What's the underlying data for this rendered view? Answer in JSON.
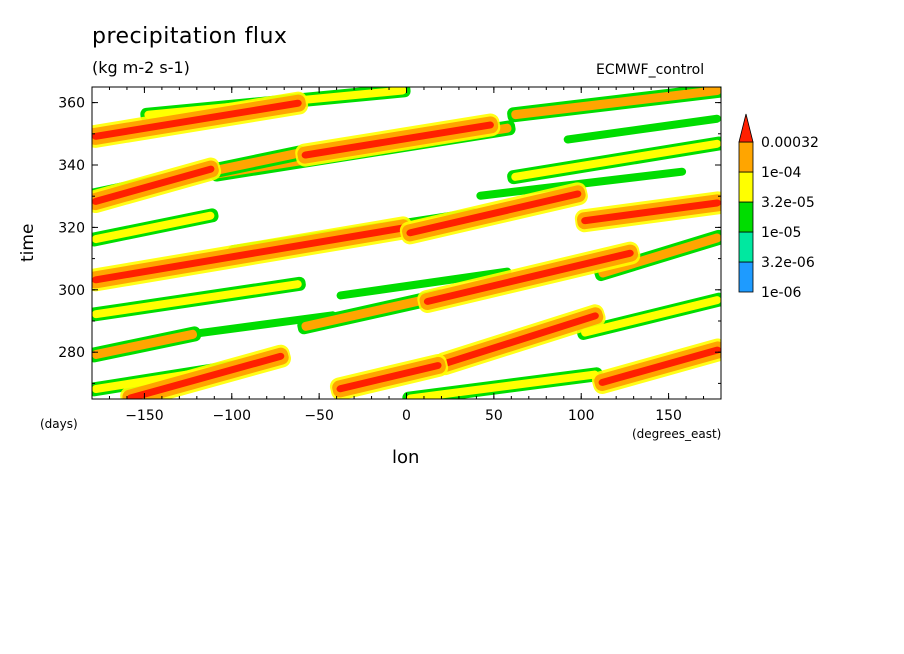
{
  "chart_data": {
    "type": "heatmap",
    "title": "precipitation flux",
    "units": "(kg m-2 s-1)",
    "model": "ECMWF_control",
    "xlabel": "lon",
    "ylabel": "time",
    "x_unit": "(degrees_east)",
    "y_unit": "(days)",
    "xlim": [
      -180,
      180
    ],
    "ylim": [
      265,
      365
    ],
    "x_ticks": [
      -150,
      -100,
      -50,
      0,
      50,
      100,
      150
    ],
    "y_ticks": [
      280,
      300,
      320,
      340,
      360
    ],
    "colorbar": {
      "levels": [
        "1e-06",
        "3.2e-06",
        "1e-05",
        "3.2e-05",
        "1e-04",
        "0.00032"
      ],
      "colors": [
        "#1e9bff",
        "#00e8a0",
        "#00dd00",
        "#ffff00",
        "#ffa500",
        "#ff2000"
      ]
    },
    "bands": [
      {
        "lon0": -180,
        "t0": 328,
        "lon1": -110,
        "t1": 339,
        "level": 5
      },
      {
        "lon0": -110,
        "t0": 337,
        "lon1": 60,
        "t1": 352,
        "level": 4
      },
      {
        "lon0": -60,
        "t0": 343,
        "lon1": 50,
        "t1": 353,
        "level": 5
      },
      {
        "lon0": -180,
        "t0": 349,
        "lon1": -60,
        "t1": 360,
        "level": 5
      },
      {
        "lon0": 60,
        "t0": 356,
        "lon1": 180,
        "t1": 364,
        "level": 4
      },
      {
        "lon0": -180,
        "t0": 303,
        "lon1": 0,
        "t1": 320,
        "level": 5
      },
      {
        "lon0": 0,
        "t0": 318,
        "lon1": 100,
        "t1": 331,
        "level": 5
      },
      {
        "lon0": 100,
        "t0": 322,
        "lon1": 180,
        "t1": 328,
        "level": 5
      },
      {
        "lon0": -180,
        "t0": 330,
        "lon1": -60,
        "t1": 344,
        "level": 4
      },
      {
        "lon0": 10,
        "t0": 296,
        "lon1": 130,
        "t1": 312,
        "level": 5
      },
      {
        "lon0": -60,
        "t0": 288,
        "lon1": 20,
        "t1": 298,
        "level": 4
      },
      {
        "lon0": 110,
        "t0": 305,
        "lon1": 180,
        "t1": 317,
        "level": 4
      },
      {
        "lon0": 20,
        "t0": 276,
        "lon1": 110,
        "t1": 292,
        "level": 5
      },
      {
        "lon0": -40,
        "t0": 268,
        "lon1": 20,
        "t1": 276,
        "level": 5
      },
      {
        "lon0": -180,
        "t0": 279,
        "lon1": -120,
        "t1": 286,
        "level": 4
      },
      {
        "lon0": -160,
        "t0": 265,
        "lon1": -70,
        "t1": 279,
        "level": 5
      },
      {
        "lon0": 110,
        "t0": 270,
        "lon1": 180,
        "t1": 281,
        "level": 5
      },
      {
        "lon0": -180,
        "t0": 292,
        "lon1": -60,
        "t1": 302,
        "level": 3
      },
      {
        "lon0": -100,
        "t0": 312,
        "lon1": 40,
        "t1": 324,
        "level": 3
      },
      {
        "lon0": -180,
        "t0": 316,
        "lon1": -110,
        "t1": 324,
        "level": 3
      },
      {
        "lon0": 60,
        "t0": 336,
        "lon1": 180,
        "t1": 347,
        "level": 3
      },
      {
        "lon0": -150,
        "t0": 356,
        "lon1": 0,
        "t1": 364,
        "level": 3
      },
      {
        "lon0": 100,
        "t0": 286,
        "lon1": 180,
        "t1": 297,
        "level": 3
      },
      {
        "lon0": -120,
        "t0": 286,
        "lon1": -40,
        "t1": 292,
        "level": 2
      },
      {
        "lon0": 40,
        "t0": 330,
        "lon1": 160,
        "t1": 338,
        "level": 2
      },
      {
        "lon0": -180,
        "t0": 268,
        "lon1": -90,
        "t1": 276,
        "level": 3
      },
      {
        "lon0": 0,
        "t0": 265,
        "lon1": 110,
        "t1": 273,
        "level": 3
      },
      {
        "lon0": 90,
        "t0": 348,
        "lon1": 180,
        "t1": 355,
        "level": 2
      },
      {
        "lon0": -40,
        "t0": 298,
        "lon1": 60,
        "t1": 306,
        "level": 2
      }
    ]
  }
}
